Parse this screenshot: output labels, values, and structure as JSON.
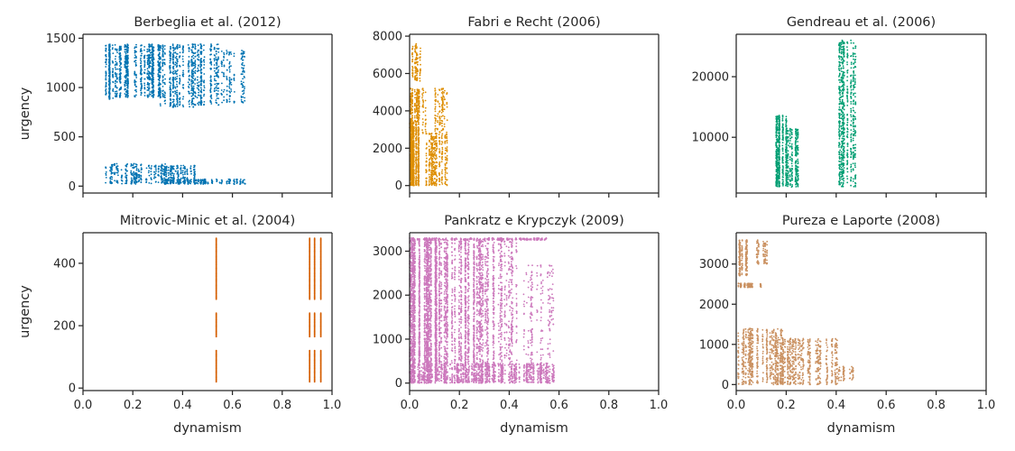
{
  "figure": {
    "x_label": "dynamism",
    "y_label": "urgency"
  },
  "chart_data": [
    {
      "type": "scatter",
      "title": "Berbeglia et al. (2012)",
      "color": "#0173b2",
      "xlim": [
        0.0,
        1.0
      ],
      "ylim": [
        -70,
        1540
      ],
      "xticks": [],
      "yticks": [
        0,
        500,
        1000,
        1500
      ],
      "ytick_labels": [
        "0",
        "500",
        "1000",
        "1500"
      ],
      "xlabel": "",
      "ylabel": "urgency",
      "clusters": [
        {
          "x_range": [
            0.08,
            0.12
          ],
          "y_range": [
            880,
            1440
          ],
          "n": 240
        },
        {
          "x_range": [
            0.12,
            0.22
          ],
          "y_range": [
            900,
            1440
          ],
          "n": 380
        },
        {
          "x_range": [
            0.22,
            0.34
          ],
          "y_range": [
            900,
            1440
          ],
          "n": 460
        },
        {
          "x_range": [
            0.3,
            0.45
          ],
          "y_range": [
            800,
            1440
          ],
          "n": 480
        },
        {
          "x_range": [
            0.45,
            0.55
          ],
          "y_range": [
            820,
            1440
          ],
          "n": 320
        },
        {
          "x_range": [
            0.55,
            0.65
          ],
          "y_range": [
            840,
            1380
          ],
          "n": 160
        },
        {
          "x_range": [
            0.08,
            0.34
          ],
          "y_range": [
            20,
            230
          ],
          "n": 300
        },
        {
          "x_range": [
            0.3,
            0.45
          ],
          "y_range": [
            30,
            210
          ],
          "n": 200
        },
        {
          "x_range": [
            0.32,
            0.65
          ],
          "y_range": [
            20,
            70
          ],
          "n": 220
        }
      ]
    },
    {
      "type": "scatter",
      "title": "Fabri e Recht (2006)",
      "color": "#de8f05",
      "xlim": [
        0.0,
        1.0
      ],
      "ylim": [
        -400,
        8100
      ],
      "xticks": [],
      "yticks": [
        0,
        2000,
        4000,
        6000,
        8000
      ],
      "ytick_labels": [
        "0",
        "2000",
        "4000",
        "6000",
        "8000"
      ],
      "xlabel": "",
      "ylabel": "",
      "clusters": [
        {
          "x_range": [
            0.0,
            0.05
          ],
          "y_range": [
            0,
            3400
          ],
          "n": 900
        },
        {
          "x_range": [
            0.0,
            0.05
          ],
          "y_range": [
            3400,
            5200
          ],
          "n": 220
        },
        {
          "x_range": [
            0.0,
            0.05
          ],
          "y_range": [
            5600,
            7600
          ],
          "n": 120
        },
        {
          "x_range": [
            0.05,
            0.15
          ],
          "y_range": [
            0,
            2800
          ],
          "n": 420
        },
        {
          "x_range": [
            0.05,
            0.15
          ],
          "y_range": [
            2800,
            5200
          ],
          "n": 160
        }
      ]
    },
    {
      "type": "scatter",
      "title": "Gendreau et al. (2006)",
      "color": "#029e73",
      "xlim": [
        0.0,
        1.0
      ],
      "ylim": [
        800,
        27000
      ],
      "xticks": [],
      "yticks": [
        10000,
        20000
      ],
      "ytick_labels": [
        "10000",
        "20000"
      ],
      "xlabel": "",
      "ylabel": "",
      "clusters": [
        {
          "x_range": [
            0.16,
            0.2
          ],
          "y_range": [
            1800,
            13600
          ],
          "n": 520
        },
        {
          "x_range": [
            0.2,
            0.25
          ],
          "y_range": [
            1800,
            11500
          ],
          "n": 300
        },
        {
          "x_range": [
            0.41,
            0.48
          ],
          "y_range": [
            1800,
            26000
          ],
          "n": 700
        }
      ]
    },
    {
      "type": "scatter",
      "title": "Mitrovic-Minic et al. (2004)",
      "color": "#d55e00",
      "xlim": [
        0.0,
        1.0
      ],
      "ylim": [
        -8,
        498
      ],
      "xticks": [
        0.0,
        0.2,
        0.4,
        0.6,
        0.8,
        1.0
      ],
      "xtick_labels": [
        "0.0",
        "0.2",
        "0.4",
        "0.6",
        "0.8",
        "1.0"
      ],
      "yticks": [
        0,
        200,
        400
      ],
      "ytick_labels": [
        "0",
        "200",
        "400"
      ],
      "xlabel": "dynamism",
      "ylabel": "urgency",
      "columns_x": [
        0.535,
        0.91,
        0.93,
        0.955
      ],
      "y_segments": [
        [
          20,
          120
        ],
        [
          165,
          240
        ],
        [
          285,
          480
        ]
      ]
    },
    {
      "type": "scatter",
      "title": "Pankratz e Krypczyk (2009)",
      "color": "#cc78bc",
      "xlim": [
        0.0,
        1.0
      ],
      "ylim": [
        -170,
        3420
      ],
      "xticks": [
        0.0,
        0.2,
        0.4,
        0.6,
        0.8,
        1.0
      ],
      "xtick_labels": [
        "0.0",
        "0.2",
        "0.4",
        "0.6",
        "0.8",
        "1.0"
      ],
      "yticks": [
        0,
        1000,
        2000,
        3000
      ],
      "ytick_labels": [
        "0",
        "1000",
        "2000",
        "3000"
      ],
      "xlabel": "dynamism",
      "ylabel": "",
      "clusters": [
        {
          "x_range": [
            0.0,
            0.12
          ],
          "y_range": [
            0,
            3300
          ],
          "n": 2600
        },
        {
          "x_range": [
            0.12,
            0.3
          ],
          "y_range": [
            0,
            3300
          ],
          "n": 1700
        },
        {
          "x_range": [
            0.3,
            0.45
          ],
          "y_range": [
            0,
            3300
          ],
          "n": 700
        },
        {
          "x_range": [
            0.45,
            0.58
          ],
          "y_range": [
            0,
            2700
          ],
          "n": 260
        },
        {
          "x_range": [
            0.0,
            0.58
          ],
          "y_range": [
            0,
            450
          ],
          "n": 1000
        },
        {
          "x_range": [
            0.0,
            0.55
          ],
          "y_range": [
            3250,
            3300
          ],
          "n": 300
        }
      ]
    },
    {
      "type": "scatter",
      "title": "Pureza e Laporte (2008)",
      "color": "#ca9161",
      "xlim": [
        0.0,
        1.0
      ],
      "ylim": [
        -150,
        3780
      ],
      "xticks": [
        0.0,
        0.2,
        0.4,
        0.6,
        0.8,
        1.0
      ],
      "xtick_labels": [
        "0.0",
        "0.2",
        "0.4",
        "0.6",
        "0.8",
        "1.0"
      ],
      "yticks": [
        0,
        1000,
        2000,
        3000
      ],
      "ytick_labels": [
        "0",
        "1000",
        "2000",
        "3000"
      ],
      "xlabel": "dynamism",
      "ylabel": "",
      "clusters": [
        {
          "x_range": [
            0.0,
            0.05
          ],
          "y_range": [
            2700,
            3600
          ],
          "n": 220
        },
        {
          "x_range": [
            0.07,
            0.13
          ],
          "y_range": [
            3000,
            3600
          ],
          "n": 90
        },
        {
          "x_range": [
            0.0,
            0.1
          ],
          "y_range": [
            2420,
            2520
          ],
          "n": 140
        },
        {
          "x_range": [
            0.0,
            0.2
          ],
          "y_range": [
            0,
            1400
          ],
          "n": 700
        },
        {
          "x_range": [
            0.15,
            0.42
          ],
          "y_range": [
            0,
            1150
          ],
          "n": 700
        },
        {
          "x_range": [
            0.4,
            0.47
          ],
          "y_range": [
            100,
            450
          ],
          "n": 60
        }
      ]
    }
  ]
}
